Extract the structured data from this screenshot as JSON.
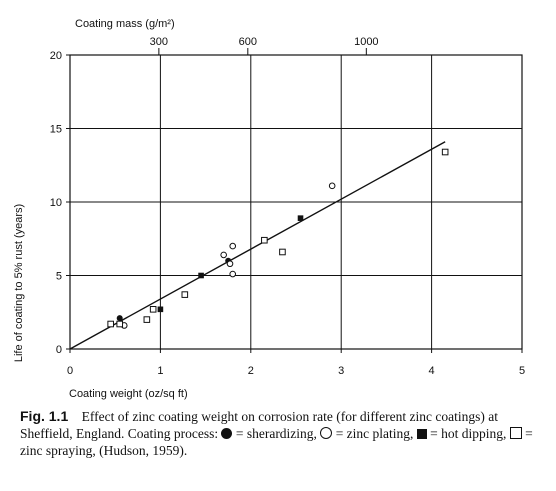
{
  "chart_data": {
    "type": "scatter",
    "title": "",
    "xlabel": "Coating weight (oz/sq ft)",
    "ylabel": "Life of coating to 5% rust (years)",
    "top_axis_label": "Coating mass (g/m²)",
    "xlim": [
      0,
      5
    ],
    "ylim": [
      0,
      20
    ],
    "x_ticks": [
      "0",
      "1",
      "2",
      "3",
      "4",
      "5"
    ],
    "y_ticks": [
      "0",
      "5",
      "10",
      "15",
      "20"
    ],
    "top_ticks": [
      {
        "label": "300",
        "x": 0.983
      },
      {
        "label": "600",
        "x": 1.967
      },
      {
        "label": "1000",
        "x": 3.278
      }
    ],
    "x_grid": [
      1,
      2,
      3,
      4,
      5
    ],
    "y_grid": [
      5,
      10,
      15,
      20
    ],
    "fit_line": {
      "x": [
        0,
        4.15
      ],
      "y": [
        0,
        14.1
      ]
    },
    "series": [
      {
        "marker": "filled-circle",
        "x": [
          0.55,
          1.75
        ],
        "y": [
          2.1,
          6.0
        ]
      },
      {
        "marker": "open-circle",
        "x": [
          0.6,
          1.7,
          1.77,
          1.8,
          1.8,
          2.9
        ],
        "y": [
          1.6,
          6.4,
          5.8,
          7.0,
          5.1,
          11.1
        ]
      },
      {
        "marker": "filled-square",
        "x": [
          1.0,
          1.45,
          2.55
        ],
        "y": [
          2.7,
          5.0,
          8.9
        ]
      },
      {
        "marker": "open-square",
        "x": [
          0.45,
          0.55,
          0.85,
          0.92,
          1.27,
          2.15,
          2.35,
          4.15
        ],
        "y": [
          1.7,
          1.7,
          2.0,
          2.7,
          3.7,
          7.4,
          6.6,
          13.4
        ]
      }
    ]
  },
  "caption": {
    "figure_label": "Fig. 1.1",
    "text_start": "Effect of zinc coating weight on corrosion rate (for different zinc coatings) at Sheffield, England. Coating process:",
    "item1": "= sherardizing,",
    "item2": "= zinc plating,",
    "item3": "= hot dipping,",
    "item4": "= zinc spraying, (Hudson, 1959)."
  },
  "colors": {
    "ink": "#111111",
    "background": "#ffffff"
  }
}
